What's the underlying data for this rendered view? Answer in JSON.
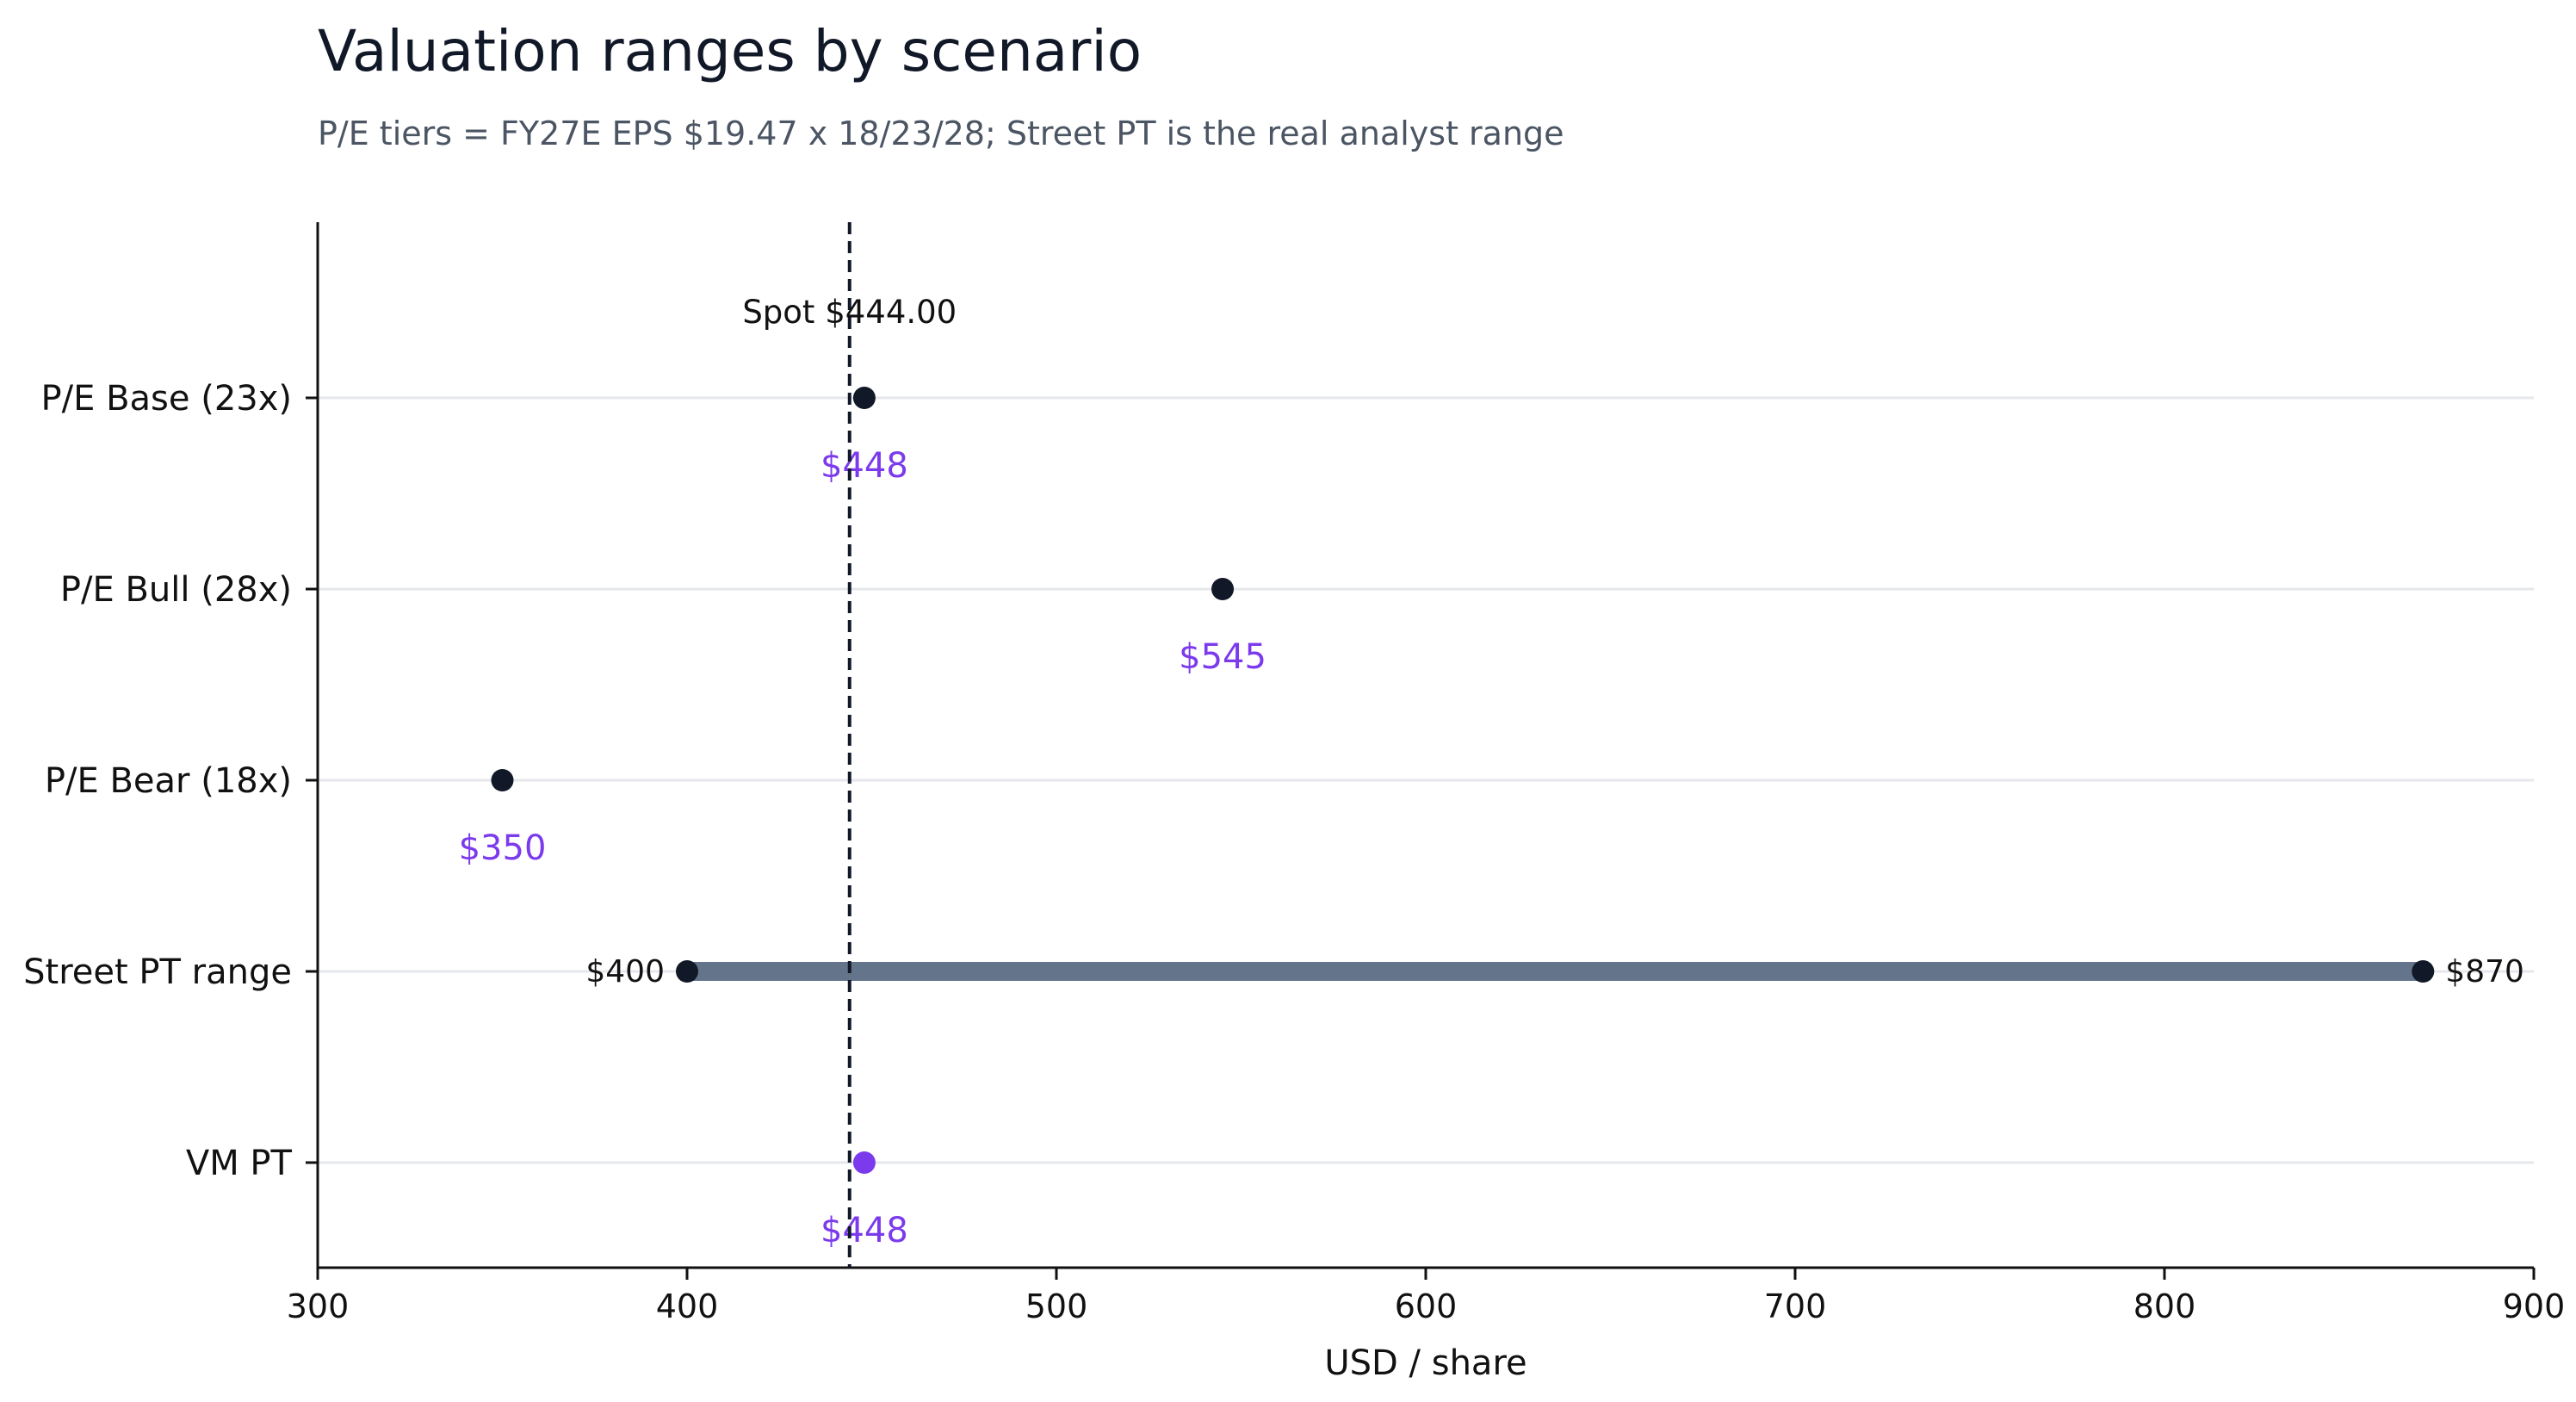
{
  "chart_data": {
    "type": "dot-range",
    "title": "Valuation ranges by scenario",
    "subtitle": "P/E tiers = FY27E EPS $19.47 x 18/23/28; Street PT is the real analyst range",
    "xlabel": "USD / share",
    "xlim": [
      300,
      900
    ],
    "xticks": [
      300,
      400,
      500,
      600,
      700,
      800,
      900
    ],
    "grid": "horizontal",
    "categories": [
      "P/E Base (23x)",
      "P/E Bull (28x)",
      "P/E Bear (18x)",
      "Street PT range",
      "VM PT"
    ],
    "points": [
      {
        "category": "P/E Base (23x)",
        "value": 448,
        "label": "$448",
        "color": "#111827",
        "label_color": "#7c3aed"
      },
      {
        "category": "P/E Bull (28x)",
        "value": 545,
        "label": "$545",
        "color": "#111827",
        "label_color": "#7c3aed"
      },
      {
        "category": "P/E Bear (18x)",
        "value": 350,
        "label": "$350",
        "color": "#111827",
        "label_color": "#7c3aed"
      },
      {
        "category": "VM PT",
        "value": 448,
        "label": "$448",
        "color": "#7c3aed",
        "label_color": "#7c3aed"
      }
    ],
    "ranges": [
      {
        "category": "Street PT range",
        "low": 400,
        "high": 870,
        "low_label": "$400",
        "high_label": "$870",
        "bar_color": "#64748b",
        "dot_color": "#111827"
      }
    ],
    "reference_line": {
      "value": 444.0,
      "label": "Spot $444.00",
      "style": "dashed",
      "color": "#111827"
    }
  }
}
